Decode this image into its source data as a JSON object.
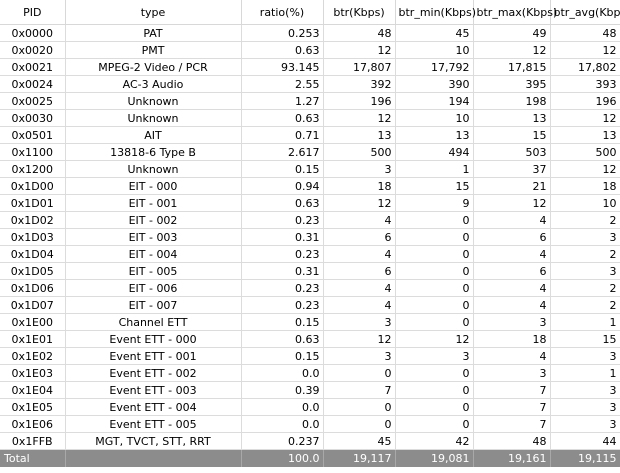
{
  "columns": [
    "PID",
    "type",
    "ratio(%)",
    "btr(Kbps)",
    "btr_min(Kbps)",
    "btr_max(Kbps)",
    "btr_avg(Kbps)"
  ],
  "rows": [
    [
      "0x0000",
      "PAT",
      "0.253",
      "48",
      "45",
      "49",
      "48"
    ],
    [
      "0x0020",
      "PMT",
      "0.63",
      "12",
      "10",
      "12",
      "12"
    ],
    [
      "0x0021",
      "MPEG-2 Video / PCR",
      "93.145",
      "17,807",
      "17,792",
      "17,815",
      "17,802"
    ],
    [
      "0x0024",
      "AC-3 Audio",
      "2.55",
      "392",
      "390",
      "395",
      "393"
    ],
    [
      "0x0025",
      "Unknown",
      "1.27",
      "196",
      "194",
      "198",
      "196"
    ],
    [
      "0x0030",
      "Unknown",
      "0.63",
      "12",
      "10",
      "13",
      "12"
    ],
    [
      "0x0501",
      "AIT",
      "0.71",
      "13",
      "13",
      "15",
      "13"
    ],
    [
      "0x1100",
      "13818-6 Type B",
      "2.617",
      "500",
      "494",
      "503",
      "500"
    ],
    [
      "0x1200",
      "Unknown",
      "0.15",
      "3",
      "1",
      "37",
      "12"
    ],
    [
      "0x1D00",
      "EIT - 000",
      "0.94",
      "18",
      "15",
      "21",
      "18"
    ],
    [
      "0x1D01",
      "EIT - 001",
      "0.63",
      "12",
      "9",
      "12",
      "10"
    ],
    [
      "0x1D02",
      "EIT - 002",
      "0.23",
      "4",
      "0",
      "4",
      "2"
    ],
    [
      "0x1D03",
      "EIT - 003",
      "0.31",
      "6",
      "0",
      "6",
      "3"
    ],
    [
      "0x1D04",
      "EIT - 004",
      "0.23",
      "4",
      "0",
      "4",
      "2"
    ],
    [
      "0x1D05",
      "EIT - 005",
      "0.31",
      "6",
      "0",
      "6",
      "3"
    ],
    [
      "0x1D06",
      "EIT - 006",
      "0.23",
      "4",
      "0",
      "4",
      "2"
    ],
    [
      "0x1D07",
      "EIT - 007",
      "0.23",
      "4",
      "0",
      "4",
      "2"
    ],
    [
      "0x1E00",
      "Channel ETT",
      "0.15",
      "3",
      "0",
      "3",
      "1"
    ],
    [
      "0x1E01",
      "Event ETT - 000",
      "0.63",
      "12",
      "12",
      "18",
      "15"
    ],
    [
      "0x1E02",
      "Event ETT - 001",
      "0.15",
      "3",
      "3",
      "4",
      "3"
    ],
    [
      "0x1E03",
      "Event ETT - 002",
      "0.0",
      "0",
      "0",
      "3",
      "1"
    ],
    [
      "0x1E04",
      "Event ETT - 003",
      "0.39",
      "7",
      "0",
      "7",
      "3"
    ],
    [
      "0x1E05",
      "Event ETT - 004",
      "0.0",
      "0",
      "0",
      "7",
      "3"
    ],
    [
      "0x1E06",
      "Event ETT - 005",
      "0.0",
      "0",
      "0",
      "7",
      "3"
    ],
    [
      "0x1FFB",
      "MGT, TVCT, STT, RRT",
      "0.237",
      "45",
      "42",
      "48",
      "44"
    ]
  ],
  "total": [
    "Total",
    "",
    "100.0",
    "19,117",
    "19,081",
    "19,161",
    "19,115"
  ]
}
